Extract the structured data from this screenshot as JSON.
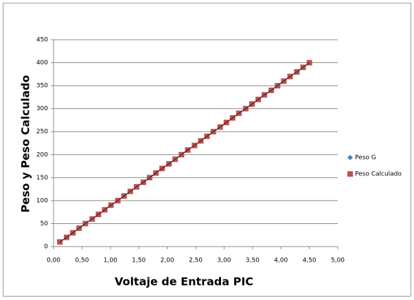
{
  "chart_data": {
    "type": "scatter",
    "x_label": "Voltaje de Entrada PIC",
    "y_label": "Peso y Peso Calculado",
    "x": [
      0.11,
      0.23,
      0.34,
      0.45,
      0.56,
      0.68,
      0.79,
      0.9,
      1.01,
      1.13,
      1.24,
      1.35,
      1.46,
      1.58,
      1.69,
      1.8,
      1.91,
      2.03,
      2.14,
      2.25,
      2.36,
      2.48,
      2.59,
      2.7,
      2.81,
      2.93,
      3.04,
      3.15,
      3.26,
      3.38,
      3.49,
      3.6,
      3.71,
      3.83,
      3.94,
      4.05,
      4.16,
      4.28,
      4.39,
      4.5
    ],
    "series": [
      {
        "name": "Peso G",
        "color": "#4f81bd",
        "line_color": "#222222",
        "marker": "diamond",
        "values": [
          10,
          20,
          30,
          40,
          50,
          60,
          70,
          80,
          90,
          100,
          110,
          120,
          130,
          140,
          150,
          160,
          170,
          180,
          190,
          200,
          210,
          220,
          230,
          240,
          250,
          260,
          270,
          280,
          290,
          300,
          310,
          320,
          330,
          340,
          350,
          360,
          370,
          380,
          390,
          400
        ]
      },
      {
        "name": "Peso Calculado",
        "color": "#c0504d",
        "marker": "square",
        "values": [
          10,
          20,
          30,
          40,
          50,
          60,
          70,
          80,
          90,
          100,
          110,
          120,
          130,
          140,
          150,
          160,
          170,
          180,
          190,
          200,
          210,
          220,
          230,
          240,
          250,
          260,
          270,
          280,
          290,
          300,
          310,
          320,
          330,
          340,
          350,
          360,
          370,
          380,
          390,
          400
        ]
      }
    ],
    "xlim": [
      0,
      5
    ],
    "xticks": [
      {
        "value": 0,
        "label": "0,00"
      },
      {
        "value": 0.5,
        "label": "0,50"
      },
      {
        "value": 1,
        "label": "1,00"
      },
      {
        "value": 1.5,
        "label": "1,50"
      },
      {
        "value": 2,
        "label": "2,00"
      },
      {
        "value": 2.5,
        "label": "2,50"
      },
      {
        "value": 3,
        "label": "3,00"
      },
      {
        "value": 3.5,
        "label": "3,50"
      },
      {
        "value": 4,
        "label": "4,00"
      },
      {
        "value": 4.5,
        "label": "4,50"
      },
      {
        "value": 5,
        "label": "5,00"
      }
    ],
    "ylim": [
      0,
      450
    ],
    "yticks": [
      0,
      50,
      100,
      150,
      200,
      250,
      300,
      350,
      400,
      450
    ],
    "grid": true,
    "legend": "right"
  }
}
